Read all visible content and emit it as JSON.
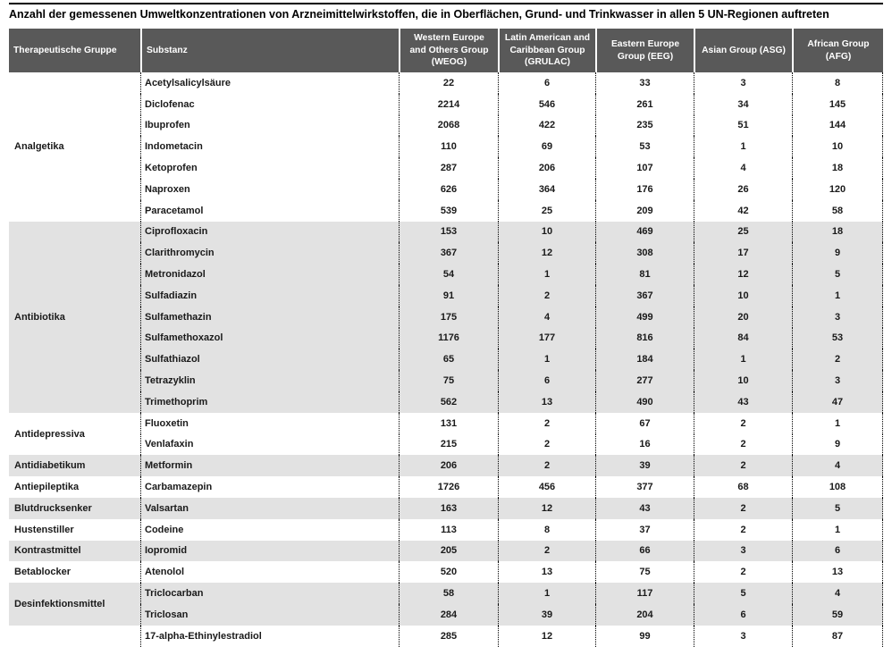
{
  "title": "Anzahl der gemessenen Umweltkonzentrationen von Arzneimittelwirkstoffen, die in Oberflächen, Grund- und Trinkwasser in allen 5 UN-Regionen auftreten",
  "colors": {
    "header_bg": "#595959",
    "header_text": "#ffffff",
    "band_bg": "#e2e2e2",
    "top_rule": "#000000"
  },
  "table": {
    "columns": [
      "Therapeutische Gruppe",
      "Substanz",
      "Western Europe and Others Group (WEOG)",
      "Latin American and Caribbean Group (GRULAC)",
      "Eastern Europe Group (EEG)",
      "Asian Group (ASG)",
      "African Group (AFG)"
    ],
    "groups": [
      {
        "name": "Analgetika",
        "rows": [
          {
            "substanz": "Acetylsalicylsäure",
            "values": [
              22,
              6,
              33,
              3,
              8
            ]
          },
          {
            "substanz": "Diclofenac",
            "values": [
              2214,
              546,
              261,
              34,
              145
            ]
          },
          {
            "substanz": "Ibuprofen",
            "values": [
              2068,
              422,
              235,
              51,
              144
            ]
          },
          {
            "substanz": "Indometacin",
            "values": [
              110,
              69,
              53,
              1,
              10
            ]
          },
          {
            "substanz": "Ketoprofen",
            "values": [
              287,
              206,
              107,
              4,
              18
            ]
          },
          {
            "substanz": "Naproxen",
            "values": [
              626,
              364,
              176,
              26,
              120
            ]
          },
          {
            "substanz": "Paracetamol",
            "values": [
              539,
              25,
              209,
              42,
              58
            ]
          }
        ]
      },
      {
        "name": "Antibiotika",
        "rows": [
          {
            "substanz": "Ciprofloxacin",
            "values": [
              153,
              10,
              469,
              25,
              18
            ]
          },
          {
            "substanz": "Clarithromycin",
            "values": [
              367,
              12,
              308,
              17,
              9
            ]
          },
          {
            "substanz": "Metronidazol",
            "values": [
              54,
              1,
              81,
              12,
              5
            ]
          },
          {
            "substanz": "Sulfadiazin",
            "values": [
              91,
              2,
              367,
              10,
              1
            ]
          },
          {
            "substanz": "Sulfamethazin",
            "values": [
              175,
              4,
              499,
              20,
              3
            ]
          },
          {
            "substanz": "Sulfamethoxazol",
            "values": [
              1176,
              177,
              816,
              84,
              53
            ]
          },
          {
            "substanz": "Sulfathiazol",
            "values": [
              65,
              1,
              184,
              1,
              2
            ]
          },
          {
            "substanz": "Tetrazyklin",
            "values": [
              75,
              6,
              277,
              10,
              3
            ]
          },
          {
            "substanz": "Trimethoprim",
            "values": [
              562,
              13,
              490,
              43,
              47
            ]
          }
        ]
      },
      {
        "name": "Antidepressiva",
        "rows": [
          {
            "substanz": "Fluoxetin",
            "values": [
              131,
              2,
              67,
              2,
              1
            ]
          },
          {
            "substanz": "Venlafaxin",
            "values": [
              215,
              2,
              16,
              2,
              9
            ]
          }
        ]
      },
      {
        "name": "Antidiabetikum",
        "rows": [
          {
            "substanz": "Metformin",
            "values": [
              206,
              2,
              39,
              2,
              4
            ]
          }
        ]
      },
      {
        "name": "Antiepileptika",
        "rows": [
          {
            "substanz": "Carbamazepin",
            "values": [
              1726,
              456,
              377,
              68,
              108
            ]
          }
        ]
      },
      {
        "name": "Blutdrucksenker",
        "rows": [
          {
            "substanz": "Valsartan",
            "values": [
              163,
              12,
              43,
              2,
              5
            ]
          }
        ]
      },
      {
        "name": "Hustenstiller",
        "rows": [
          {
            "substanz": "Codeine",
            "values": [
              113,
              8,
              37,
              2,
              1
            ]
          }
        ]
      },
      {
        "name": "Kontrastmittel",
        "rows": [
          {
            "substanz": "Iopromid",
            "values": [
              205,
              2,
              66,
              3,
              6
            ]
          }
        ]
      },
      {
        "name": "Betablocker",
        "rows": [
          {
            "substanz": "Atenolol",
            "values": [
              520,
              13,
              75,
              2,
              13
            ]
          }
        ]
      },
      {
        "name": "Desinfektionsmittel",
        "rows": [
          {
            "substanz": "Triclocarban",
            "values": [
              58,
              1,
              117,
              5,
              4
            ]
          },
          {
            "substanz": "Triclosan",
            "values": [
              284,
              39,
              204,
              6,
              59
            ]
          }
        ]
      },
      {
        "name": "",
        "rows": [
          {
            "substanz": "17-alpha-Ethinylestradiol",
            "values": [
              285,
              12,
              99,
              3,
              87
            ]
          }
        ]
      }
    ]
  }
}
